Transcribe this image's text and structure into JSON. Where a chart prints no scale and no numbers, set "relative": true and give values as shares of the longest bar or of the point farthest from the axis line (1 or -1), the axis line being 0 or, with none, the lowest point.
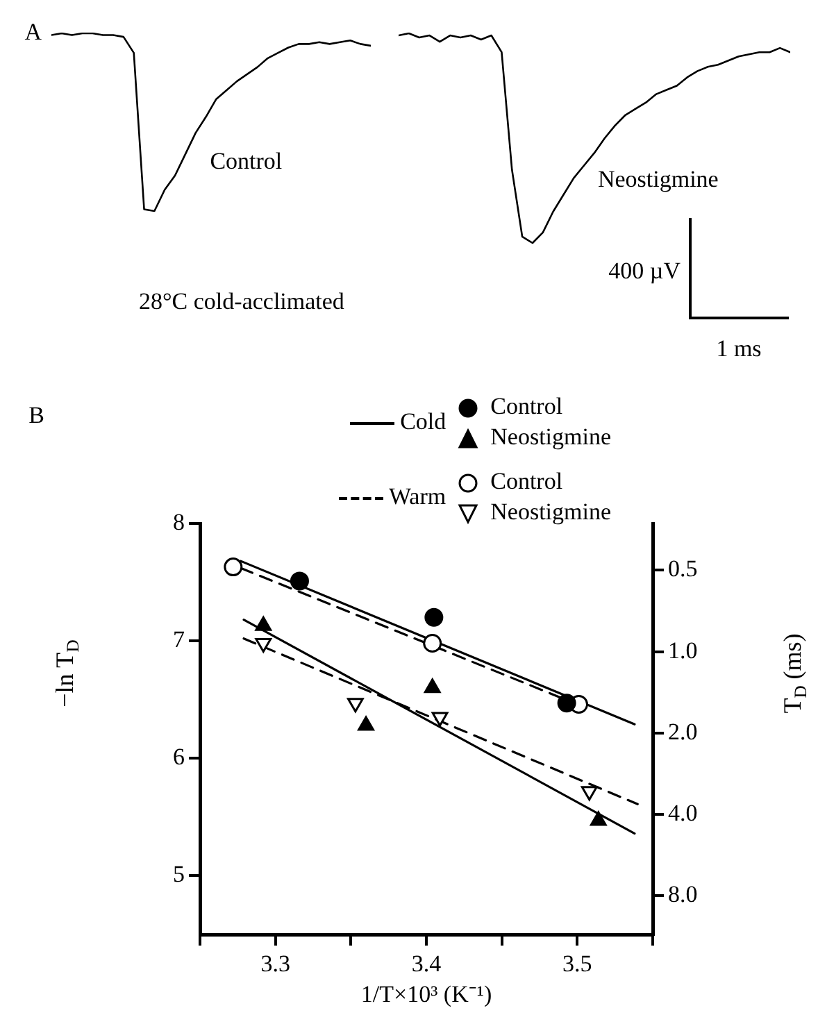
{
  "chart_data": [
    {
      "type": "line",
      "title": "A",
      "relative": true,
      "marker": "none",
      "annotations": [
        "28°C cold-acclimated"
      ],
      "categories": [
        null,
        null,
        null,
        null,
        null,
        null,
        null,
        null,
        null,
        null,
        null,
        null,
        null,
        null,
        null,
        null,
        null,
        null,
        null,
        null,
        null,
        null,
        null,
        null,
        null,
        null,
        null,
        null,
        null,
        null,
        null,
        null
      ],
      "series": [
        {
          "name": "Control",
          "color": "#000000",
          "values": [
            0.99,
            1,
            0.99,
            1,
            1,
            0.99,
            0.99,
            0.98,
            0.89,
            0.01,
            0,
            0.12,
            0.2,
            0.32,
            0.44,
            0.53,
            0.63,
            0.68,
            0.73,
            0.77,
            0.81,
            0.86,
            0.89,
            0.92,
            0.94,
            0.94,
            0.95,
            0.94,
            0.95,
            0.96,
            0.94,
            0.93
          ]
        }
      ]
    },
    {
      "type": "line",
      "relative": true,
      "marker": "none",
      "annotations": [
        "400 µV",
        "1 ms"
      ],
      "categories": [
        null,
        null,
        null,
        null,
        null,
        null,
        null,
        null,
        null,
        null,
        null,
        null,
        null,
        null,
        null,
        null,
        null,
        null,
        null,
        null,
        null,
        null,
        null,
        null,
        null,
        null,
        null,
        null,
        null,
        null,
        null,
        null,
        null,
        null,
        null,
        null,
        null,
        null,
        null
      ],
      "series": [
        {
          "name": "Neostigmine",
          "color": "#000000",
          "values": [
            0.99,
            1,
            0.98,
            0.99,
            0.96,
            0.99,
            0.98,
            0.99,
            0.97,
            0.99,
            0.91,
            0.35,
            0.03,
            0,
            0.05,
            0.15,
            0.23,
            0.31,
            0.37,
            0.43,
            0.5,
            0.56,
            0.61,
            0.64,
            0.67,
            0.71,
            0.73,
            0.75,
            0.79,
            0.82,
            0.84,
            0.85,
            0.87,
            0.89,
            0.9,
            0.91,
            0.91,
            0.93,
            0.91
          ]
        }
      ]
    },
    {
      "type": "scatter",
      "title": "B",
      "xlabel": "1/T×10³ (K⁻¹)",
      "ylabel": "−ln T$_{D}$",
      "y2label": "T$_{D}$ (ms)",
      "legend": "top right",
      "grid": false,
      "xlim": [
        3.25,
        3.55
      ],
      "xticks": [
        {
          "value": 3.25,
          "label": null
        },
        3.3,
        {
          "value": 3.35,
          "label": null
        },
        3.4,
        {
          "value": 3.45,
          "label": null
        },
        3.5,
        {
          "value": 3.55,
          "label": null
        }
      ],
      "ylim": [
        4.5,
        8
      ],
      "yticks": [
        5,
        6,
        7,
        8
      ],
      "y2lim": [
        11.11,
        0.3355
      ],
      "y2ticks": [
        0.5,
        {
          "value": 1,
          "label": "1.0"
        },
        {
          "value": 2,
          "label": "2.0"
        },
        {
          "value": 4,
          "label": "4.0"
        },
        {
          "value": 8,
          "label": "8.0"
        }
      ],
      "log": "y2",
      "series": [
        {
          "type": "line",
          "name": "Cold",
          "color": "#000000",
          "x": [
            3.277,
            3.538
          ],
          "values": [
            7.68,
            6.29
          ],
          "line_style": "solid",
          "marker": "none"
        },
        {
          "type": "line",
          "color": "#000000",
          "x": [
            3.279,
            3.538
          ],
          "values": [
            7.18,
            5.36
          ],
          "line_style": "solid",
          "marker": "none"
        },
        {
          "type": "line",
          "name": "Warm",
          "color": "#000000",
          "x": [
            3.277,
            3.5
          ],
          "values": [
            7.62,
            6.46
          ],
          "line_style": "dashed",
          "marker": "none"
        },
        {
          "type": "line",
          "color": "#000000",
          "x": [
            3.279,
            3.54
          ],
          "values": [
            7.02,
            5.61
          ],
          "line_style": "dashed",
          "marker": "none"
        },
        {
          "name": "Control",
          "color": "#000000",
          "x": [
            3.316,
            3.405,
            3.493
          ],
          "values": [
            7.51,
            7.2,
            6.47
          ],
          "marker": "circle"
        },
        {
          "name": "Neostigmine",
          "color": "#000000",
          "x": [
            3.292,
            3.36,
            3.404,
            3.514
          ],
          "values": [
            7.13,
            6.28,
            6.6,
            5.47
          ],
          "marker": "triangle"
        },
        {
          "name": "Control",
          "color": "#ffffff",
          "x": [
            3.272,
            3.404,
            3.501
          ],
          "values": [
            7.63,
            6.98,
            6.46
          ],
          "marker": "circle"
        },
        {
          "name": "Neostigmine",
          "color": "#ffffff",
          "x": [
            3.292,
            3.353,
            3.409,
            3.508
          ],
          "values": [
            6.98,
            6.47,
            6.35,
            5.72
          ],
          "marker": "triangle-down"
        }
      ]
    }
  ]
}
